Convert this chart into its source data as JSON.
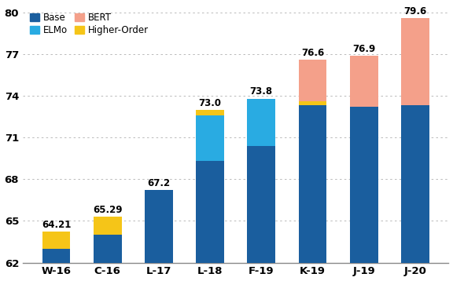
{
  "categories": [
    "W-16",
    "C-16",
    "L-17",
    "L-18",
    "F-19",
    "K-19",
    "J-19",
    "J-20"
  ],
  "totals": [
    64.21,
    65.29,
    67.2,
    73.0,
    73.8,
    76.6,
    76.9,
    79.6
  ],
  "base": [
    63.0,
    64.0,
    67.2,
    69.3,
    70.4,
    73.3,
    73.2,
    73.3
  ],
  "elmo": [
    0.0,
    0.0,
    0.0,
    3.3,
    3.4,
    0.0,
    0.0,
    0.0
  ],
  "higher_order": [
    1.21,
    1.29,
    0.0,
    0.4,
    0.0,
    0.3,
    0.0,
    0.0
  ],
  "bert": [
    0.0,
    0.0,
    0.0,
    0.0,
    0.0,
    3.0,
    3.7,
    6.3
  ],
  "color_base": "#1a5e9e",
  "color_elmo": "#29abe2",
  "color_ho": "#f5c518",
  "color_bert": "#f4a08a",
  "ylim_min": 62,
  "ylim_max": 80.5,
  "yticks": [
    62,
    65,
    68,
    71,
    74,
    77,
    80
  ],
  "bar_width": 0.55,
  "background_color": "#ffffff",
  "grid_color": "#b0b0b0"
}
